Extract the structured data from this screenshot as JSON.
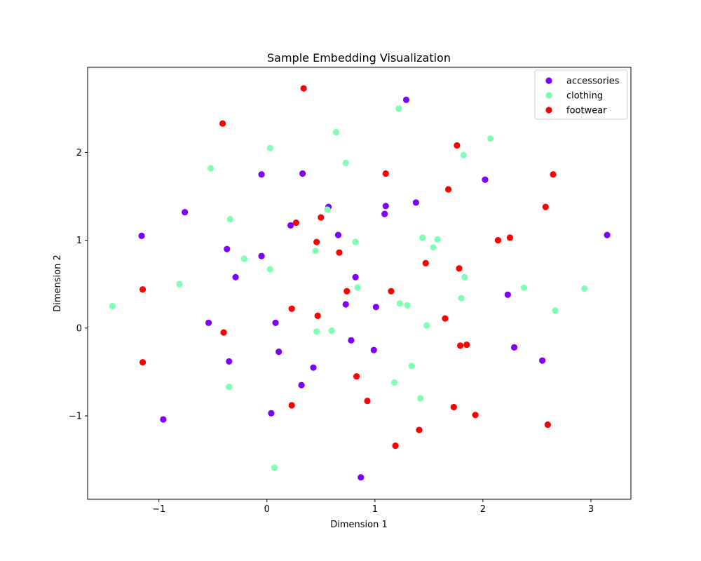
{
  "chart_data": {
    "type": "scatter",
    "title": "Sample Embedding Visualization",
    "xlabel": "Dimension 1",
    "ylabel": "Dimension 2",
    "xlim": [
      -1.66,
      3.37
    ],
    "ylim": [
      -1.95,
      2.97
    ],
    "xticks": [
      -1,
      0,
      1,
      2,
      3
    ],
    "yticks": [
      -1,
      0,
      1,
      2
    ],
    "tick_labels_x": [
      "−1",
      "0",
      "1",
      "2",
      "3"
    ],
    "tick_labels_y": [
      "−1",
      "0",
      "1",
      "2"
    ],
    "grid": false,
    "legend_position": "top-right",
    "series": [
      {
        "name": "accessories",
        "color": "#8000ff",
        "points": [
          [
            1.29,
            2.6
          ],
          [
            2.02,
            1.69
          ],
          [
            0.33,
            1.76
          ],
          [
            -0.05,
            1.75
          ],
          [
            -0.76,
            1.32
          ],
          [
            0.57,
            1.38
          ],
          [
            1.1,
            1.39
          ],
          [
            1.38,
            1.43
          ],
          [
            1.09,
            1.3
          ],
          [
            0.22,
            1.17
          ],
          [
            -1.16,
            1.05
          ],
          [
            0.66,
            1.06
          ],
          [
            3.15,
            1.06
          ],
          [
            -0.37,
            0.9
          ],
          [
            -0.05,
            0.82
          ],
          [
            -0.29,
            0.58
          ],
          [
            0.82,
            0.58
          ],
          [
            2.23,
            0.38
          ],
          [
            0.73,
            0.27
          ],
          [
            1.01,
            0.24
          ],
          [
            -0.54,
            0.06
          ],
          [
            0.08,
            0.06
          ],
          [
            0.78,
            -0.14
          ],
          [
            0.99,
            -0.25
          ],
          [
            0.11,
            -0.27
          ],
          [
            2.29,
            -0.22
          ],
          [
            -0.35,
            -0.38
          ],
          [
            2.55,
            -0.37
          ],
          [
            0.43,
            -0.45
          ],
          [
            0.32,
            -0.65
          ],
          [
            0.04,
            -0.97
          ],
          [
            -0.96,
            -1.04
          ],
          [
            0.87,
            -1.7
          ]
        ]
      },
      {
        "name": "clothing",
        "color": "#80ffb4",
        "points": [
          [
            1.22,
            2.5
          ],
          [
            0.64,
            2.23
          ],
          [
            2.07,
            2.16
          ],
          [
            0.03,
            2.05
          ],
          [
            1.82,
            1.97
          ],
          [
            0.73,
            1.88
          ],
          [
            -0.52,
            1.82
          ],
          [
            0.56,
            1.35
          ],
          [
            -0.34,
            1.24
          ],
          [
            1.44,
            1.03
          ],
          [
            1.58,
            1.01
          ],
          [
            0.82,
            0.98
          ],
          [
            1.54,
            0.92
          ],
          [
            0.45,
            0.88
          ],
          [
            -0.21,
            0.79
          ],
          [
            0.03,
            0.67
          ],
          [
            1.83,
            0.58
          ],
          [
            -0.81,
            0.5
          ],
          [
            0.84,
            0.46
          ],
          [
            2.38,
            0.46
          ],
          [
            2.94,
            0.45
          ],
          [
            1.8,
            0.34
          ],
          [
            1.23,
            0.28
          ],
          [
            1.3,
            0.26
          ],
          [
            -1.43,
            0.25
          ],
          [
            2.67,
            0.2
          ],
          [
            1.48,
            0.03
          ],
          [
            0.46,
            -0.04
          ],
          [
            0.6,
            -0.03
          ],
          [
            1.34,
            -0.43
          ],
          [
            1.18,
            -0.62
          ],
          [
            -0.35,
            -0.67
          ],
          [
            1.42,
            -0.8
          ],
          [
            0.07,
            -1.59
          ]
        ]
      },
      {
        "name": "footwear",
        "color": "#ff0000",
        "points": [
          [
            0.34,
            2.73
          ],
          [
            -0.41,
            2.33
          ],
          [
            1.76,
            2.08
          ],
          [
            1.1,
            1.76
          ],
          [
            2.65,
            1.75
          ],
          [
            1.68,
            1.58
          ],
          [
            2.58,
            1.38
          ],
          [
            0.5,
            1.26
          ],
          [
            0.27,
            1.2
          ],
          [
            2.25,
            1.03
          ],
          [
            2.14,
            1.0
          ],
          [
            0.46,
            0.98
          ],
          [
            0.67,
            0.86
          ],
          [
            1.47,
            0.74
          ],
          [
            1.78,
            0.68
          ],
          [
            -1.15,
            0.44
          ],
          [
            0.74,
            0.42
          ],
          [
            1.15,
            0.42
          ],
          [
            0.23,
            0.22
          ],
          [
            0.47,
            0.14
          ],
          [
            1.65,
            0.11
          ],
          [
            -0.4,
            -0.05
          ],
          [
            1.79,
            -0.2
          ],
          [
            1.85,
            -0.19
          ],
          [
            -1.15,
            -0.39
          ],
          [
            0.83,
            -0.55
          ],
          [
            0.93,
            -0.83
          ],
          [
            0.23,
            -0.88
          ],
          [
            1.73,
            -0.9
          ],
          [
            1.93,
            -0.99
          ],
          [
            2.6,
            -1.1
          ],
          [
            1.41,
            -1.16
          ],
          [
            1.19,
            -1.34
          ]
        ]
      }
    ]
  }
}
